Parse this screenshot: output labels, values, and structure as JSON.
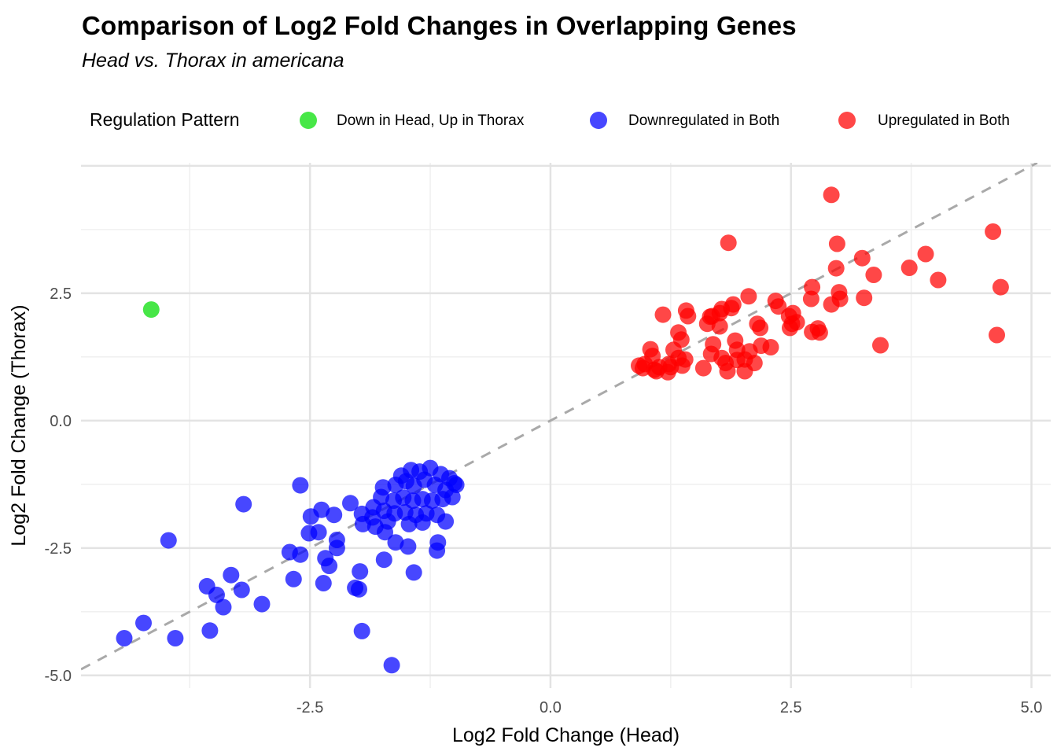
{
  "header": {
    "title": "Comparison of Log2 Fold Changes in Overlapping Genes",
    "subtitle": "Head vs. Thorax in americana"
  },
  "legend": {
    "title": "Regulation Pattern",
    "items": [
      {
        "label": "Down in Head, Up in Thorax",
        "color": "#00DD00"
      },
      {
        "label": "Downregulated in Both",
        "color": "#0000FF"
      },
      {
        "label": "Upregulated in Both",
        "color": "#FF0000"
      }
    ]
  },
  "chart_data": {
    "type": "scatter",
    "title": "Comparison of Log2 Fold Changes in Overlapping Genes",
    "subtitle": "Head vs. Thorax in americana",
    "xlabel": "Log2 Fold Change (Head)",
    "ylabel": "Log2 Fold Change (Thorax)",
    "xlim": [
      -4.88,
      5.2
    ],
    "ylim": [
      -5.25,
      5.06
    ],
    "grid": true,
    "legend_position": "top",
    "x_ticks": [
      {
        "value": -2.5,
        "label": "-2.5"
      },
      {
        "value": 0.0,
        "label": "0.0"
      },
      {
        "value": 2.5,
        "label": "2.5"
      },
      {
        "value": 5.0,
        "label": "5.0"
      }
    ],
    "y_ticks": [
      {
        "value": -5.0,
        "label": "-5.0"
      },
      {
        "value": -2.5,
        "label": "-2.5"
      },
      {
        "value": 0.0,
        "label": "0.0"
      },
      {
        "value": 2.5,
        "label": "2.5"
      }
    ],
    "x_grid_major": [
      -2.5,
      0,
      2.5,
      5
    ],
    "y_grid_major": [
      -5,
      -2.5,
      0,
      2.5,
      5
    ],
    "x_grid_minor": [
      -3.75,
      -1.25,
      1.25,
      3.75
    ],
    "y_grid_minor": [
      -3.75,
      -1.25,
      1.25,
      3.75
    ],
    "reference_line": {
      "equation": "y = x",
      "style": "dashed",
      "color": "#A9A9A9"
    },
    "point_radius": 10.5,
    "point_opacity": 0.72,
    "series": [
      {
        "name": "Down in Head, Up in Thorax",
        "color": "#00DD00",
        "points": [
          [
            -4.15,
            2.18
          ]
        ]
      },
      {
        "name": "Downregulated in Both",
        "color": "#0000FF",
        "points": [
          [
            -4.43,
            -4.27
          ],
          [
            -4.23,
            -3.97
          ],
          [
            -3.9,
            -4.27
          ],
          [
            -3.54,
            -4.12
          ],
          [
            -3.57,
            -3.25
          ],
          [
            -3.47,
            -3.42
          ],
          [
            -3.4,
            -3.66
          ],
          [
            -3.32,
            -3.03
          ],
          [
            -3.21,
            -3.32
          ],
          [
            -3.0,
            -3.6
          ],
          [
            -3.97,
            -2.35
          ],
          [
            -3.19,
            -1.64
          ],
          [
            -2.6,
            -1.27
          ],
          [
            -2.49,
            -1.88
          ],
          [
            -2.51,
            -2.21
          ],
          [
            -2.71,
            -2.58
          ],
          [
            -2.6,
            -2.63
          ],
          [
            -2.67,
            -3.11
          ],
          [
            -2.36,
            -3.19
          ],
          [
            -2.03,
            -3.28
          ],
          [
            -1.99,
            -3.31
          ],
          [
            -1.96,
            -4.13
          ],
          [
            -1.65,
            -4.8
          ],
          [
            -2.38,
            -1.75
          ],
          [
            -2.25,
            -1.85
          ],
          [
            -2.41,
            -2.19
          ],
          [
            -2.22,
            -2.34
          ],
          [
            -2.22,
            -2.5
          ],
          [
            -2.34,
            -2.7
          ],
          [
            -2.3,
            -2.85
          ],
          [
            -1.98,
            -2.96
          ],
          [
            -1.73,
            -2.73
          ],
          [
            -1.61,
            -2.39
          ],
          [
            -1.48,
            -2.47
          ],
          [
            -1.17,
            -2.39
          ],
          [
            -1.18,
            -2.55
          ],
          [
            -1.42,
            -2.98
          ],
          [
            -2.08,
            -1.62
          ],
          [
            -1.96,
            -1.83
          ],
          [
            -1.85,
            -1.9
          ],
          [
            -1.95,
            -2.03
          ],
          [
            -1.82,
            -2.08
          ],
          [
            -1.72,
            -2.19
          ],
          [
            -1.69,
            -1.98
          ],
          [
            -1.47,
            -2.03
          ],
          [
            -1.33,
            -2.0
          ],
          [
            -1.09,
            -1.98
          ],
          [
            -1.84,
            -1.7
          ],
          [
            -1.73,
            -1.77
          ],
          [
            -1.62,
            -1.82
          ],
          [
            -1.51,
            -1.8
          ],
          [
            -1.4,
            -1.85
          ],
          [
            -1.29,
            -1.82
          ],
          [
            -1.18,
            -1.85
          ],
          [
            -1.76,
            -1.5
          ],
          [
            -1.63,
            -1.57
          ],
          [
            -1.53,
            -1.51
          ],
          [
            -1.43,
            -1.57
          ],
          [
            -1.33,
            -1.54
          ],
          [
            -1.23,
            -1.57
          ],
          [
            -1.12,
            -1.54
          ],
          [
            -1.02,
            -1.5
          ],
          [
            -1.74,
            -1.31
          ],
          [
            -1.61,
            -1.26
          ],
          [
            -1.5,
            -1.19
          ],
          [
            -1.42,
            -1.28
          ],
          [
            -1.31,
            -1.16
          ],
          [
            -1.2,
            -1.26
          ],
          [
            -1.09,
            -1.36
          ],
          [
            -0.98,
            -1.26
          ],
          [
            -1.55,
            -1.08
          ],
          [
            -1.45,
            -0.97
          ],
          [
            -1.36,
            -1.0
          ],
          [
            -1.25,
            -0.93
          ],
          [
            -1.14,
            -1.05
          ],
          [
            -1.05,
            -1.13
          ],
          [
            -1.0,
            -1.23
          ]
        ]
      },
      {
        "name": "Upregulated in Both",
        "color": "#FF0000",
        "points": [
          [
            0.92,
            1.08
          ],
          [
            0.96,
            1.03
          ],
          [
            0.98,
            1.11
          ],
          [
            1.04,
            1.4
          ],
          [
            1.06,
            1.27
          ],
          [
            1.08,
            1.0
          ],
          [
            1.1,
            0.97
          ],
          [
            1.13,
            1.05
          ],
          [
            1.22,
            0.95
          ],
          [
            1.23,
            1.11
          ],
          [
            1.25,
            1.05
          ],
          [
            1.28,
            1.39
          ],
          [
            1.33,
            1.23
          ],
          [
            1.33,
            1.73
          ],
          [
            1.36,
            1.59
          ],
          [
            1.37,
            1.08
          ],
          [
            1.4,
            1.2
          ],
          [
            1.17,
            2.08
          ],
          [
            1.41,
            2.16
          ],
          [
            1.43,
            2.05
          ],
          [
            1.59,
            1.03
          ],
          [
            1.63,
            1.9
          ],
          [
            1.66,
            2.04
          ],
          [
            1.69,
            1.5
          ],
          [
            1.67,
            1.31
          ],
          [
            1.76,
            1.85
          ],
          [
            1.76,
            2.11
          ],
          [
            1.78,
            1.23
          ],
          [
            1.82,
            1.13
          ],
          [
            1.84,
            0.97
          ],
          [
            1.85,
            3.49
          ],
          [
            1.88,
            2.21
          ],
          [
            1.9,
            2.28
          ],
          [
            1.92,
            1.57
          ],
          [
            1.94,
            1.39
          ],
          [
            1.94,
            1.19
          ],
          [
            2.02,
            0.97
          ],
          [
            2.02,
            1.2
          ],
          [
            2.07,
            1.36
          ],
          [
            2.12,
            1.13
          ],
          [
            2.19,
            1.47
          ],
          [
            2.29,
            1.44
          ],
          [
            1.78,
            2.19
          ],
          [
            1.68,
            2.05
          ],
          [
            2.06,
            2.44
          ],
          [
            2.15,
            1.9
          ],
          [
            2.18,
            1.82
          ],
          [
            2.34,
            2.35
          ],
          [
            2.37,
            2.24
          ],
          [
            2.48,
            2.05
          ],
          [
            2.51,
            1.9
          ],
          [
            2.52,
            2.11
          ],
          [
            2.56,
            1.93
          ],
          [
            2.49,
            1.82
          ],
          [
            2.72,
            1.74
          ],
          [
            2.72,
            2.62
          ],
          [
            2.71,
            2.39
          ],
          [
            2.78,
            1.81
          ],
          [
            2.8,
            1.73
          ],
          [
            2.92,
            2.28
          ],
          [
            3.01,
            2.39
          ],
          [
            3.0,
            2.52
          ],
          [
            2.97,
            2.99
          ],
          [
            2.98,
            3.47
          ],
          [
            2.92,
            4.43
          ],
          [
            3.24,
            3.19
          ],
          [
            3.26,
            2.41
          ],
          [
            3.36,
            2.86
          ],
          [
            3.43,
            1.48
          ],
          [
            3.73,
            3.0
          ],
          [
            3.9,
            3.27
          ],
          [
            4.03,
            2.76
          ],
          [
            4.6,
            3.71
          ],
          [
            4.64,
            1.68
          ],
          [
            4.68,
            2.62
          ]
        ]
      }
    ],
    "style": {
      "grid_major_color": "#E3E3E3",
      "grid_minor_color": "#F0F0F0",
      "tick_label_color": "#4D4D4D",
      "axis_title_color": "#000000",
      "background": "#FFFFFF"
    }
  }
}
